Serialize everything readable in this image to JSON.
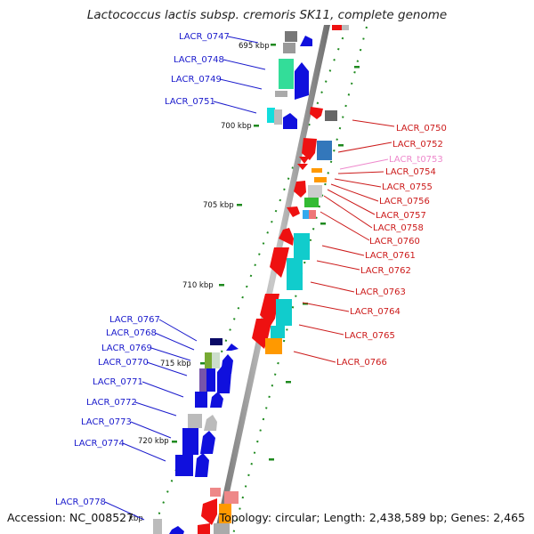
{
  "title": "Lactococcus lactis subsp. cremoris SK11, complete genome",
  "footer": {
    "accession": "Accession: NC_008527",
    "summary": "Topology: circular; Length: 2,438,589 bp; Genes: 2,465"
  },
  "colors": {
    "backbone": "#8a8a8a",
    "tick": "#1f8a1f",
    "left_labels": "#1a1acc",
    "right_labels": "#cc1a1a",
    "trna_label": "#ee88cc"
  },
  "scale_ticks": [
    "695 kbp",
    "700 kbp",
    "705 kbp",
    "710 kbp",
    "715 kbp",
    "720 kbp",
    "kbp"
  ],
  "left_genes": [
    "LACR_0747",
    "LACR_0748",
    "LACR_0749",
    "LACR_0751",
    "LACR_0767",
    "LACR_0768",
    "LACR_0769",
    "LACR_0770",
    "LACR_0771",
    "LACR_0772",
    "LACR_0773",
    "LACR_0774",
    "LACR_0778"
  ],
  "right_genes": [
    "LACR_0750",
    "LACR_0752",
    "LACR_t0753",
    "LACR_0754",
    "LACR_0755",
    "LACR_0756",
    "LACR_0757",
    "LACR_0758",
    "LACR_0760",
    "LACR_0761",
    "LACR_0762",
    "LACR_0763",
    "LACR_0764",
    "LACR_0765",
    "LACR_0766"
  ]
}
